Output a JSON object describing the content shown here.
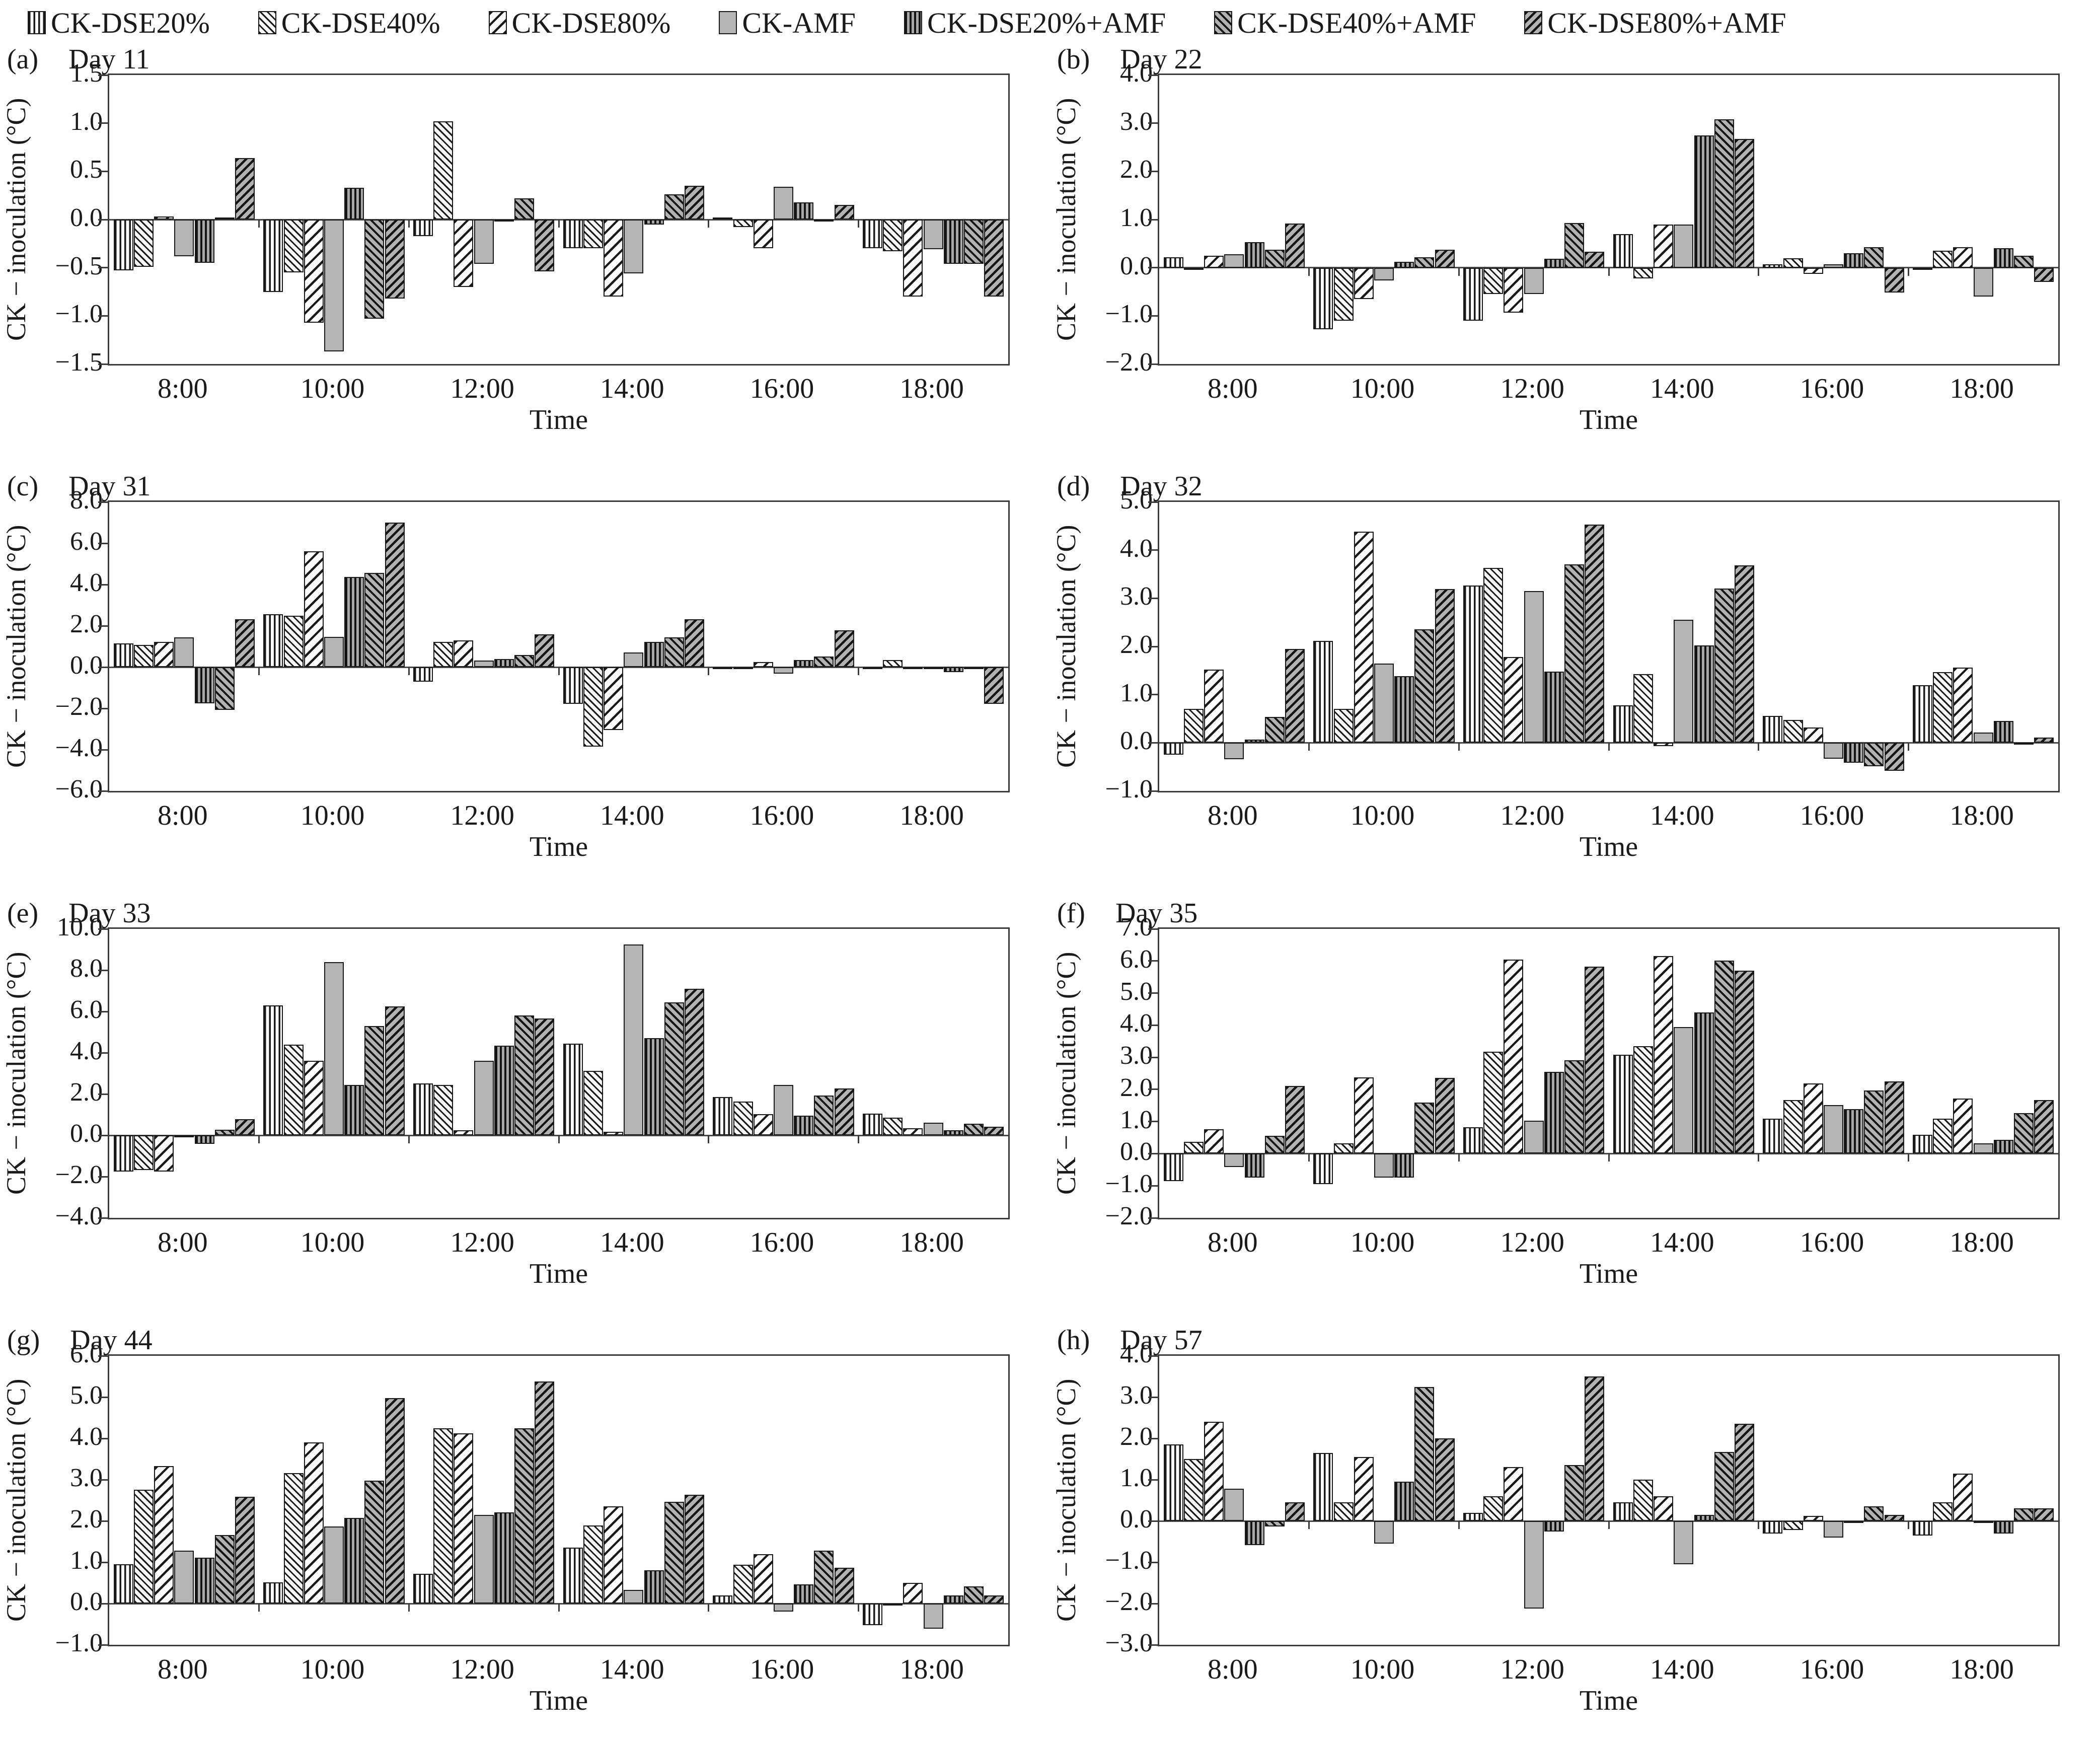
{
  "legend": {
    "items": [
      {
        "label": "CK-DSE20%",
        "swatch": "vertical-stripes-white-icon"
      },
      {
        "label": "CK-DSE40%",
        "swatch": "diagonal-down-stripes-white-icon"
      },
      {
        "label": "CK-DSE80%",
        "swatch": "diagonal-up-stripes-white-icon"
      },
      {
        "label": "CK-AMF",
        "swatch": "solid-gray-icon"
      },
      {
        "label": "CK-DSE20%+AMF",
        "swatch": "vertical-stripes-gray-icon"
      },
      {
        "label": "CK-DSE40%+AMF",
        "swatch": "diagonal-down-stripes-gray-icon"
      },
      {
        "label": "CK-DSE80%+AMF",
        "swatch": "diagonal-up-stripes-gray-icon"
      }
    ]
  },
  "chart_data": [
    {
      "type": "bar",
      "tag": "(a)",
      "title": "Day 11",
      "xlabel": "Time",
      "ylabel": "CK − inoculation (°C)",
      "ylim": [
        -1.5,
        1.5
      ],
      "ystep": 0.5,
      "grid": false,
      "legend_position": "top",
      "categories": [
        "8:00",
        "10:00",
        "12:00",
        "14:00",
        "16:00",
        "18:00"
      ],
      "series": [
        {
          "name": "CK-DSE20%",
          "values": [
            -0.53,
            -0.75,
            -0.17,
            -0.3,
            0.02,
            -0.3
          ]
        },
        {
          "name": "CK-DSE40%",
          "values": [
            -0.49,
            -0.55,
            1.02,
            -0.3,
            -0.08,
            -0.33
          ]
        },
        {
          "name": "CK-DSE80%",
          "values": [
            0.03,
            -1.07,
            -0.7,
            -0.8,
            -0.3,
            -0.8
          ]
        },
        {
          "name": "CK-AMF",
          "values": [
            -0.38,
            -1.37,
            -0.46,
            -0.56,
            0.34,
            -0.31
          ]
        },
        {
          "name": "CK-DSE20%+AMF",
          "values": [
            -0.45,
            0.33,
            -0.02,
            -0.05,
            0.18,
            -0.46
          ]
        },
        {
          "name": "CK-DSE40%+AMF",
          "values": [
            0.02,
            -1.03,
            0.22,
            0.26,
            -0.02,
            -0.46
          ]
        },
        {
          "name": "CK-DSE80%+AMF",
          "values": [
            0.64,
            -0.82,
            -0.54,
            0.35,
            0.15,
            -0.8
          ]
        }
      ]
    },
    {
      "type": "bar",
      "tag": "(b)",
      "title": "Day 22",
      "xlabel": "Time",
      "ylabel": "CK − inoculation (°C)",
      "ylim": [
        -2.0,
        4.0
      ],
      "ystep": 1.0,
      "grid": false,
      "legend_position": "top",
      "categories": [
        "8:00",
        "10:00",
        "12:00",
        "14:00",
        "16:00",
        "18:00"
      ],
      "series": [
        {
          "name": "CK-DSE20%",
          "values": [
            0.22,
            -1.28,
            -1.1,
            0.7,
            0.07,
            -0.02
          ]
        },
        {
          "name": "CK-DSE40%",
          "values": [
            -0.03,
            -1.1,
            -0.55,
            -0.22,
            0.2,
            0.35
          ]
        },
        {
          "name": "CK-DSE80%",
          "values": [
            0.25,
            -0.65,
            -0.93,
            0.9,
            -0.13,
            0.42
          ]
        },
        {
          "name": "CK-AMF",
          "values": [
            0.28,
            -0.27,
            -0.55,
            0.9,
            0.07,
            -0.6
          ]
        },
        {
          "name": "CK-DSE20%+AMF",
          "values": [
            0.53,
            0.12,
            0.18,
            2.75,
            0.3,
            0.4
          ]
        },
        {
          "name": "CK-DSE40%+AMF",
          "values": [
            0.37,
            0.22,
            0.93,
            3.08,
            0.43,
            0.25
          ]
        },
        {
          "name": "CK-DSE80%+AMF",
          "values": [
            0.92,
            0.37,
            0.33,
            2.67,
            -0.52,
            -0.3
          ]
        }
      ]
    },
    {
      "type": "bar",
      "tag": "(c)",
      "title": "Day 31",
      "xlabel": "Time",
      "ylabel": "CK − inoculation (°C)",
      "ylim": [
        -6.0,
        8.0
      ],
      "ystep": 2.0,
      "grid": false,
      "legend_position": "top",
      "categories": [
        "8:00",
        "10:00",
        "12:00",
        "14:00",
        "16:00",
        "18:00"
      ],
      "series": [
        {
          "name": "CK-DSE20%",
          "values": [
            1.15,
            2.56,
            -0.7,
            -1.79,
            -0.05,
            -0.05
          ]
        },
        {
          "name": "CK-DSE40%",
          "values": [
            1.08,
            2.49,
            1.23,
            -3.86,
            -0.05,
            0.34
          ]
        },
        {
          "name": "CK-DSE80%",
          "values": [
            1.23,
            5.6,
            1.29,
            -3.05,
            0.24,
            -0.06
          ]
        },
        {
          "name": "CK-AMF",
          "values": [
            1.43,
            1.47,
            0.31,
            0.7,
            -0.32,
            -0.08
          ]
        },
        {
          "name": "CK-DSE20%+AMF",
          "values": [
            -1.75,
            4.36,
            0.39,
            1.22,
            0.34,
            -0.25
          ]
        },
        {
          "name": "CK-DSE40%+AMF",
          "values": [
            -2.07,
            4.55,
            0.59,
            1.43,
            0.52,
            -0.06
          ]
        },
        {
          "name": "CK-DSE80%+AMF",
          "values": [
            2.31,
            7.0,
            1.59,
            2.31,
            1.78,
            -1.79
          ]
        }
      ]
    },
    {
      "type": "bar",
      "tag": "(d)",
      "title": "Day 32",
      "xlabel": "Time",
      "ylabel": "CK − inoculation (°C)",
      "ylim": [
        -1.0,
        5.0
      ],
      "ystep": 1.0,
      "grid": false,
      "legend_position": "top",
      "categories": [
        "8:00",
        "10:00",
        "12:00",
        "14:00",
        "16:00",
        "18:00"
      ],
      "series": [
        {
          "name": "CK-DSE20%",
          "values": [
            -0.25,
            2.12,
            3.27,
            0.78,
            0.56,
            1.2
          ]
        },
        {
          "name": "CK-DSE40%",
          "values": [
            0.7,
            0.7,
            3.63,
            1.43,
            0.47,
            1.47
          ]
        },
        {
          "name": "CK-DSE80%",
          "values": [
            1.52,
            4.38,
            1.78,
            -0.07,
            0.32,
            1.56
          ]
        },
        {
          "name": "CK-AMF",
          "values": [
            -0.34,
            1.64,
            3.15,
            2.55,
            -0.33,
            0.21
          ]
        },
        {
          "name": "CK-DSE20%+AMF",
          "values": [
            0.07,
            1.38,
            1.48,
            2.02,
            -0.41,
            0.45
          ]
        },
        {
          "name": "CK-DSE40%+AMF",
          "values": [
            0.54,
            2.36,
            3.7,
            3.2,
            -0.49,
            -0.04
          ]
        },
        {
          "name": "CK-DSE80%+AMF",
          "values": [
            1.95,
            3.19,
            4.53,
            3.68,
            -0.58,
            0.11
          ]
        }
      ]
    },
    {
      "type": "bar",
      "tag": "(e)",
      "title": "Day 33",
      "xlabel": "Time",
      "ylabel": "CK − inoculation (°C)",
      "ylim": [
        -4.0,
        10.0
      ],
      "ystep": 2.0,
      "grid": false,
      "legend_position": "top",
      "categories": [
        "8:00",
        "10:00",
        "12:00",
        "14:00",
        "16:00",
        "18:00"
      ],
      "series": [
        {
          "name": "CK-DSE20%",
          "values": [
            -1.75,
            6.3,
            2.52,
            4.45,
            1.85,
            1.05
          ]
        },
        {
          "name": "CK-DSE40%",
          "values": [
            -1.68,
            4.38,
            2.45,
            3.12,
            1.64,
            0.85
          ]
        },
        {
          "name": "CK-DSE80%",
          "values": [
            -1.75,
            3.6,
            0.24,
            0.17,
            1.02,
            0.35
          ]
        },
        {
          "name": "CK-AMF",
          "values": [
            -0.08,
            8.4,
            3.6,
            9.25,
            2.45,
            0.6
          ]
        },
        {
          "name": "CK-DSE20%+AMF",
          "values": [
            -0.42,
            2.45,
            4.35,
            4.7,
            0.95,
            0.25
          ]
        },
        {
          "name": "CK-DSE40%+AMF",
          "values": [
            0.28,
            5.3,
            5.8,
            6.45,
            1.92,
            0.55
          ]
        },
        {
          "name": "CK-DSE80%+AMF",
          "values": [
            0.77,
            6.25,
            5.65,
            7.1,
            2.27,
            0.42
          ]
        }
      ]
    },
    {
      "type": "bar",
      "tag": "(f)",
      "title": "Day 35",
      "xlabel": "Time",
      "ylabel": "CK − inoculation (°C)",
      "ylim": [
        -2.0,
        7.0
      ],
      "ystep": 1.0,
      "grid": false,
      "legend_position": "top",
      "categories": [
        "8:00",
        "10:00",
        "12:00",
        "14:00",
        "16:00",
        "18:00"
      ],
      "series": [
        {
          "name": "CK-DSE20%",
          "values": [
            -0.85,
            -0.95,
            0.82,
            3.08,
            1.09,
            0.59
          ]
        },
        {
          "name": "CK-DSE40%",
          "values": [
            0.36,
            0.32,
            3.17,
            3.35,
            1.67,
            1.09
          ]
        },
        {
          "name": "CK-DSE80%",
          "values": [
            0.76,
            2.38,
            6.05,
            6.15,
            2.18,
            1.72
          ]
        },
        {
          "name": "CK-AMF",
          "values": [
            -0.41,
            -0.75,
            1.02,
            3.95,
            1.52,
            0.32
          ]
        },
        {
          "name": "CK-DSE20%+AMF",
          "values": [
            -0.75,
            -0.75,
            2.54,
            4.4,
            1.38,
            0.43
          ]
        },
        {
          "name": "CK-DSE40%+AMF",
          "values": [
            0.56,
            1.59,
            2.9,
            6.02,
            1.97,
            1.26
          ]
        },
        {
          "name": "CK-DSE80%+AMF",
          "values": [
            2.11,
            2.36,
            5.82,
            5.7,
            2.25,
            1.67
          ]
        }
      ]
    },
    {
      "type": "bar",
      "tag": "(g)",
      "title": "Day 44",
      "xlabel": "Time",
      "ylabel": "CK − inoculation (°C)",
      "ylim": [
        -1.0,
        6.0
      ],
      "ystep": 1.0,
      "grid": false,
      "legend_position": "top",
      "categories": [
        "8:00",
        "10:00",
        "12:00",
        "14:00",
        "16:00",
        "18:00"
      ],
      "series": [
        {
          "name": "CK-DSE20%",
          "values": [
            0.95,
            0.51,
            0.72,
            1.35,
            0.2,
            -0.52
          ]
        },
        {
          "name": "CK-DSE40%",
          "values": [
            2.76,
            3.16,
            4.24,
            1.89,
            0.94,
            -0.04
          ]
        },
        {
          "name": "CK-DSE80%",
          "values": [
            3.33,
            3.9,
            4.12,
            2.35,
            1.2,
            0.5
          ]
        },
        {
          "name": "CK-AMF",
          "values": [
            1.28,
            1.86,
            2.15,
            0.33,
            -0.2,
            -0.61
          ]
        },
        {
          "name": "CK-DSE20%+AMF",
          "values": [
            1.11,
            2.07,
            2.21,
            0.8,
            0.46,
            0.2
          ]
        },
        {
          "name": "CK-DSE40%+AMF",
          "values": [
            1.66,
            2.97,
            4.25,
            2.46,
            1.28,
            0.42
          ]
        },
        {
          "name": "CK-DSE80%+AMF",
          "values": [
            2.58,
            4.97,
            5.38,
            2.63,
            0.87,
            0.19
          ]
        }
      ]
    },
    {
      "type": "bar",
      "tag": "(h)",
      "title": "Day 57",
      "xlabel": "Time",
      "ylabel": "CK − inoculation (°C)",
      "ylim": [
        -3.0,
        4.0
      ],
      "ystep": 1.0,
      "grid": false,
      "legend_position": "top",
      "categories": [
        "8:00",
        "10:00",
        "12:00",
        "14:00",
        "16:00",
        "18:00"
      ],
      "series": [
        {
          "name": "CK-DSE20%",
          "values": [
            1.85,
            1.65,
            0.2,
            0.45,
            -0.3,
            -0.35
          ]
        },
        {
          "name": "CK-DSE40%",
          "values": [
            1.5,
            0.45,
            0.6,
            1.0,
            -0.22,
            0.45
          ]
        },
        {
          "name": "CK-DSE80%",
          "values": [
            2.4,
            1.55,
            1.3,
            0.6,
            0.12,
            1.15
          ]
        },
        {
          "name": "CK-AMF",
          "values": [
            0.78,
            -0.55,
            -2.12,
            -1.05,
            -0.4,
            -0.04
          ]
        },
        {
          "name": "CK-DSE20%+AMF",
          "values": [
            -0.58,
            0.95,
            -0.25,
            0.15,
            -0.04,
            -0.3
          ]
        },
        {
          "name": "CK-DSE40%+AMF",
          "values": [
            -0.13,
            3.25,
            1.35,
            1.67,
            0.35,
            0.3
          ]
        },
        {
          "name": "CK-DSE80%+AMF",
          "values": [
            0.45,
            2.0,
            3.5,
            2.35,
            0.15,
            0.3
          ]
        }
      ]
    }
  ]
}
